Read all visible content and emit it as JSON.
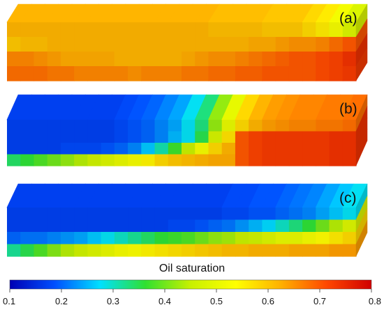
{
  "panels": [
    {
      "id": "a",
      "label": "(a)",
      "profile": [
        [
          0.62,
          0.62,
          0.62,
          0.62,
          0.62,
          0.62,
          0.62,
          0.62,
          0.62,
          0.62,
          0.62,
          0.62,
          0.62,
          0.62,
          0.62,
          0.61,
          0.61,
          0.61,
          0.61,
          0.6,
          0.6,
          0.6,
          0.58,
          0.56,
          0.52,
          0.48
        ],
        [
          0.6,
          0.61,
          0.61,
          0.62,
          0.62,
          0.62,
          0.62,
          0.62,
          0.62,
          0.62,
          0.62,
          0.62,
          0.62,
          0.62,
          0.62,
          0.62,
          0.62,
          0.62,
          0.63,
          0.63,
          0.64,
          0.65,
          0.65,
          0.66,
          0.68,
          0.7
        ],
        [
          0.66,
          0.66,
          0.65,
          0.64,
          0.63,
          0.63,
          0.63,
          0.63,
          0.62,
          0.62,
          0.62,
          0.62,
          0.62,
          0.63,
          0.64,
          0.65,
          0.65,
          0.66,
          0.67,
          0.68,
          0.69,
          0.7,
          0.7,
          0.71,
          0.72,
          0.74
        ],
        [
          0.68,
          0.68,
          0.68,
          0.67,
          0.67,
          0.66,
          0.66,
          0.66,
          0.66,
          0.65,
          0.66,
          0.66,
          0.66,
          0.67,
          0.67,
          0.68,
          0.68,
          0.69,
          0.69,
          0.7,
          0.7,
          0.7,
          0.7,
          0.71,
          0.72,
          0.73
        ]
      ]
    },
    {
      "id": "b",
      "label": "(b)",
      "profile": [
        [
          0.17,
          0.17,
          0.17,
          0.17,
          0.17,
          0.17,
          0.17,
          0.17,
          0.18,
          0.19,
          0.2,
          0.22,
          0.24,
          0.28,
          0.33,
          0.42,
          0.5,
          0.58,
          0.62,
          0.64,
          0.65,
          0.66,
          0.66,
          0.67,
          0.67,
          0.68
        ],
        [
          0.17,
          0.17,
          0.17,
          0.17,
          0.17,
          0.17,
          0.17,
          0.17,
          0.18,
          0.19,
          0.2,
          0.22,
          0.25,
          0.28,
          0.35,
          0.47,
          0.57,
          0.7,
          0.72,
          0.73,
          0.73,
          0.73,
          0.73,
          0.73,
          0.74,
          0.74
        ],
        [
          0.17,
          0.17,
          0.17,
          0.17,
          0.18,
          0.18,
          0.18,
          0.19,
          0.2,
          0.22,
          0.26,
          0.31,
          0.37,
          0.45,
          0.52,
          0.58,
          0.62,
          0.7,
          0.72,
          0.73,
          0.73,
          0.73,
          0.73,
          0.73,
          0.74,
          0.74
        ],
        [
          0.34,
          0.36,
          0.38,
          0.4,
          0.42,
          0.44,
          0.46,
          0.48,
          0.5,
          0.52,
          0.55,
          0.58,
          0.6,
          0.61,
          0.62,
          0.63,
          0.63,
          0.7,
          0.72,
          0.73,
          0.73,
          0.73,
          0.73,
          0.73,
          0.74,
          0.74
        ]
      ]
    },
    {
      "id": "c",
      "label": "(c)",
      "profile": [
        [
          0.17,
          0.17,
          0.17,
          0.17,
          0.17,
          0.17,
          0.17,
          0.17,
          0.17,
          0.17,
          0.17,
          0.17,
          0.17,
          0.17,
          0.17,
          0.17,
          0.18,
          0.18,
          0.19,
          0.19,
          0.2,
          0.21,
          0.22,
          0.24,
          0.26,
          0.28
        ],
        [
          0.17,
          0.17,
          0.17,
          0.17,
          0.17,
          0.17,
          0.17,
          0.17,
          0.17,
          0.17,
          0.17,
          0.17,
          0.18,
          0.18,
          0.19,
          0.2,
          0.21,
          0.23,
          0.25,
          0.27,
          0.3,
          0.33,
          0.36,
          0.4,
          0.44,
          0.48
        ],
        [
          0.2,
          0.21,
          0.21,
          0.22,
          0.23,
          0.24,
          0.26,
          0.28,
          0.3,
          0.32,
          0.34,
          0.36,
          0.37,
          0.38,
          0.4,
          0.42,
          0.43,
          0.45,
          0.46,
          0.48,
          0.5,
          0.5,
          0.52,
          0.54,
          0.56,
          0.58
        ],
        [
          0.32,
          0.35,
          0.38,
          0.41,
          0.44,
          0.46,
          0.48,
          0.5,
          0.52,
          0.53,
          0.55,
          0.56,
          0.57,
          0.58,
          0.59,
          0.6,
          0.61,
          0.61,
          0.62,
          0.62,
          0.62,
          0.63,
          0.63,
          0.63,
          0.64,
          0.64
        ]
      ]
    }
  ],
  "colorbar": {
    "title": "Oil saturation",
    "min": 0.1,
    "max": 0.8,
    "ticks": [
      "0.1",
      "0.2",
      "0.3",
      "0.4",
      "0.5",
      "0.6",
      "0.7",
      "0.8"
    ],
    "colors": [
      "#0000b4",
      "#0050ff",
      "#00e0ff",
      "#30e030",
      "#c8f000",
      "#ffff00",
      "#ffb000",
      "#ff4800",
      "#d00000"
    ]
  }
}
